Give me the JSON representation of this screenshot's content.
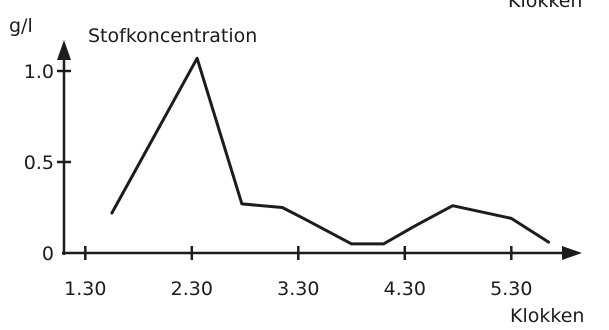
{
  "chart_data": {
    "type": "line",
    "title": "",
    "ylabel": "Stofkoncentration",
    "yunit": "g/l",
    "xlabel": "Klokken",
    "top_right_label": "Klokken",
    "x_tick_labels": [
      "1.30",
      "2.30",
      "3.30",
      "4.30",
      "5.30"
    ],
    "y_tick_labels": [
      "0",
      "0.5",
      "1.0"
    ],
    "x_ticks_hours": [
      1.5,
      2.5,
      3.5,
      4.5,
      5.5
    ],
    "y_ticks": [
      0,
      0.5,
      1.0
    ],
    "xlim_hours": [
      1.3,
      5.95
    ],
    "ylim": [
      0,
      1.12
    ],
    "grid": false,
    "series": [
      {
        "points": [
          {
            "x": 1.75,
            "y": 0.22
          },
          {
            "x": 2.55,
            "y": 1.07
          },
          {
            "x": 2.97,
            "y": 0.27
          },
          {
            "x": 3.35,
            "y": 0.25
          },
          {
            "x": 3.55,
            "y": 0.19
          },
          {
            "x": 4.0,
            "y": 0.05
          },
          {
            "x": 4.3,
            "y": 0.05
          },
          {
            "x": 4.6,
            "y": 0.15
          },
          {
            "x": 4.95,
            "y": 0.26
          },
          {
            "x": 5.5,
            "y": 0.19
          },
          {
            "x": 5.85,
            "y": 0.06
          }
        ]
      }
    ],
    "colors": {
      "ink": "#1c1c1c"
    }
  }
}
